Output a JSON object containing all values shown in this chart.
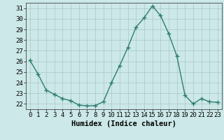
{
  "x": [
    0,
    1,
    2,
    3,
    4,
    5,
    6,
    7,
    8,
    9,
    10,
    11,
    12,
    13,
    14,
    15,
    16,
    17,
    18,
    19,
    20,
    21,
    22,
    23
  ],
  "y": [
    26.1,
    24.8,
    23.3,
    22.9,
    22.5,
    22.3,
    21.9,
    21.8,
    21.85,
    22.2,
    24.0,
    25.6,
    27.3,
    29.2,
    30.1,
    31.2,
    30.3,
    28.6,
    26.5,
    22.8,
    22.0,
    22.5,
    22.2,
    22.15
  ],
  "line_color": "#2e7d6e",
  "marker": "+",
  "marker_size": 4,
  "bg_color": "#cce8e8",
  "grid_color": "#aac8c8",
  "xlabel": "Humidex (Indice chaleur)",
  "xlim": [
    -0.5,
    23.5
  ],
  "ylim": [
    21.5,
    31.5
  ],
  "yticks": [
    22,
    23,
    24,
    25,
    26,
    27,
    28,
    29,
    30,
    31
  ],
  "xticks": [
    0,
    1,
    2,
    3,
    4,
    5,
    6,
    7,
    8,
    9,
    10,
    11,
    12,
    13,
    14,
    15,
    16,
    17,
    18,
    19,
    20,
    21,
    22,
    23
  ],
  "xlabel_fontsize": 7.5,
  "tick_fontsize": 6.5,
  "line_width": 1.0
}
